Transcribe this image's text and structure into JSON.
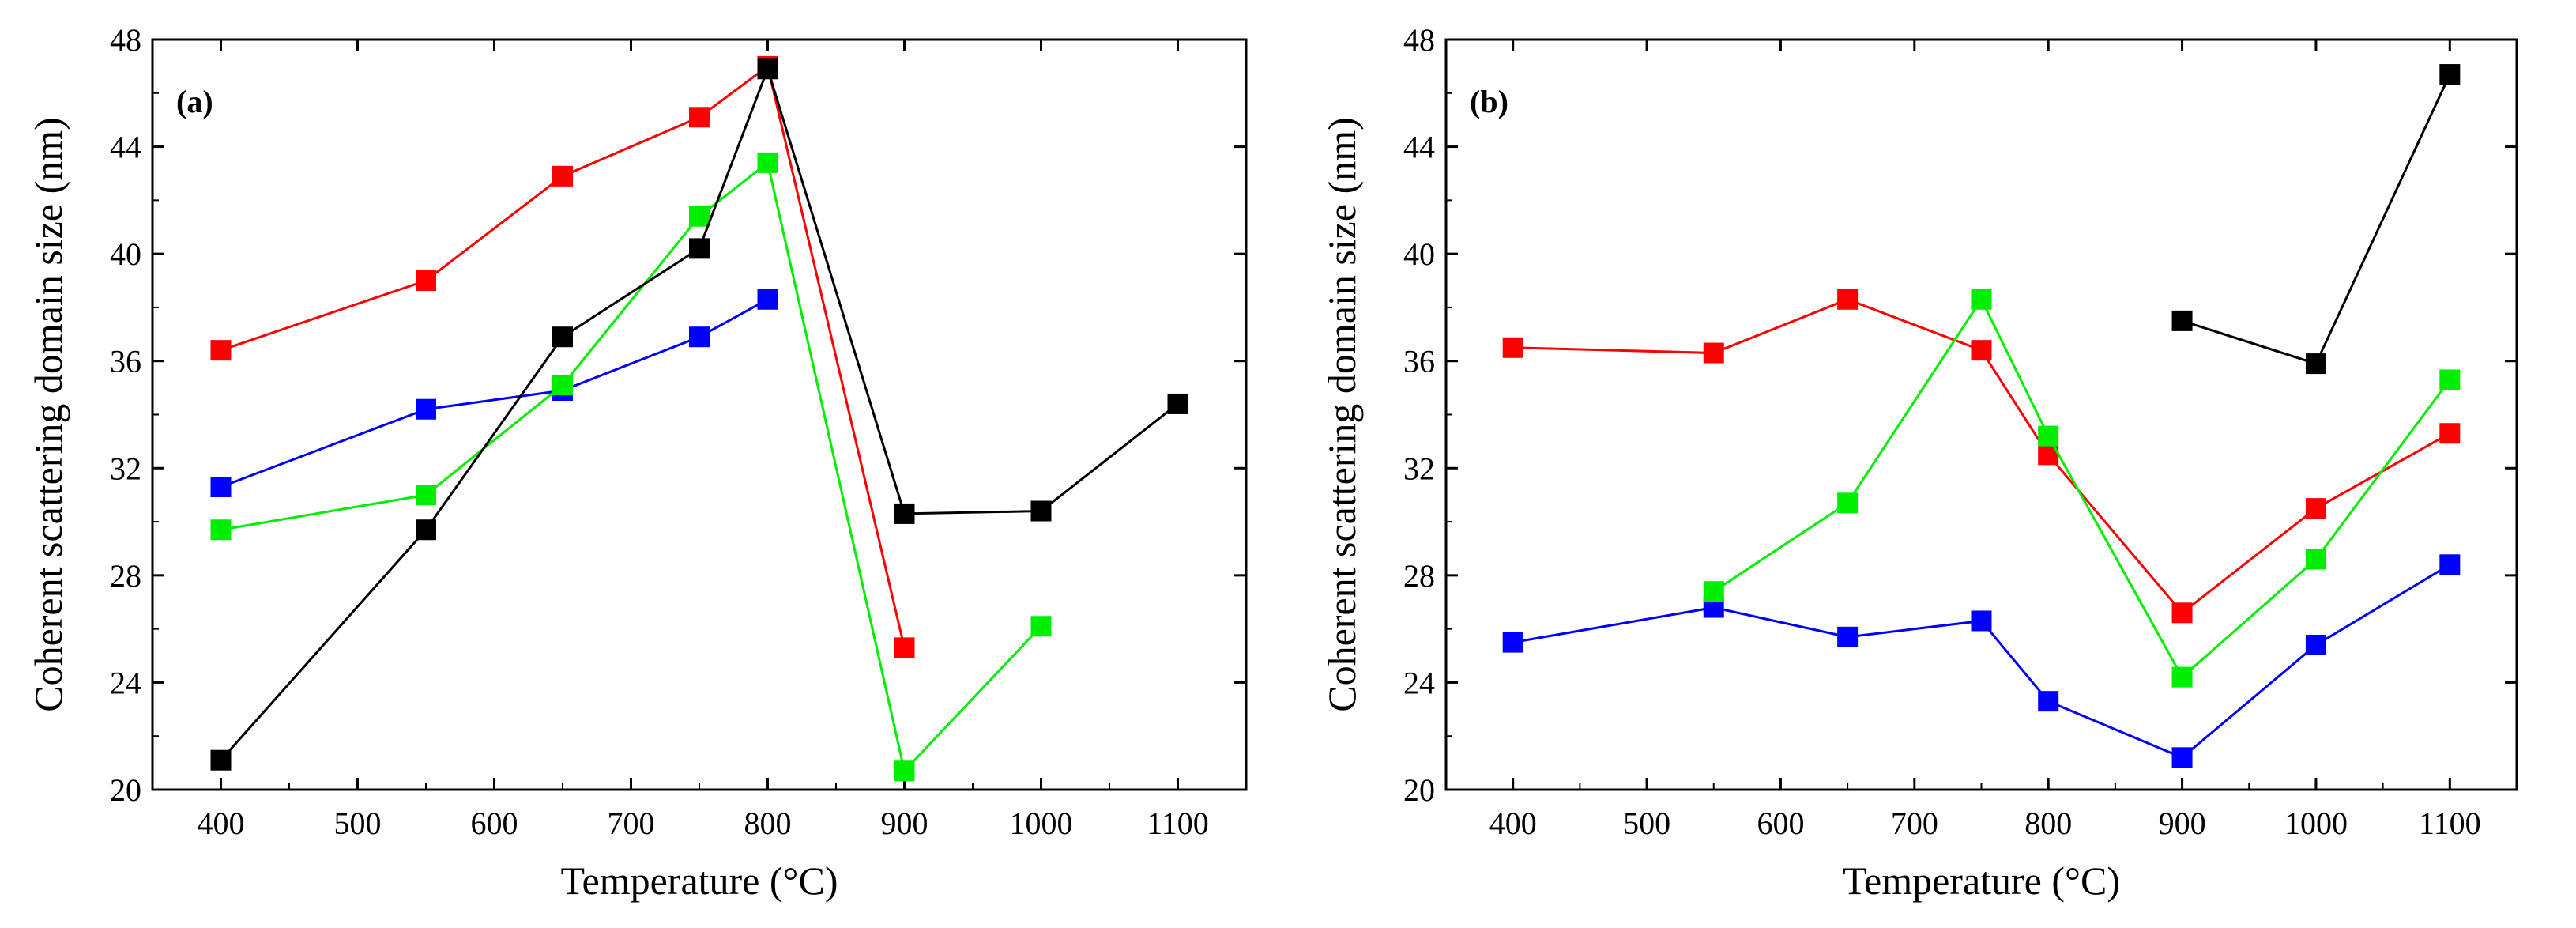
{
  "chart_data": [
    {
      "type": "line",
      "panel_label": "(a)",
      "xlabel": "Temperature (°C)",
      "ylabel": "Coherent scattering domain size (nm)",
      "xlim": [
        350,
        1150
      ],
      "ylim": [
        20,
        48
      ],
      "xticks": [
        400,
        500,
        600,
        700,
        800,
        900,
        1000,
        1100
      ],
      "yticks": [
        20,
        24,
        28,
        32,
        36,
        40,
        44,
        48
      ],
      "series": [
        {
          "name": "red",
          "color": "#ff0000",
          "x": [
            400,
            550,
            650,
            750,
            800,
            900
          ],
          "y": [
            36.4,
            39.0,
            42.9,
            45.1,
            47.0,
            25.3
          ]
        },
        {
          "name": "blue",
          "color": "#0000ff",
          "x": [
            400,
            550,
            650,
            750,
            800
          ],
          "y": [
            31.3,
            34.2,
            34.9,
            36.9,
            38.3
          ]
        },
        {
          "name": "green",
          "color": "#00ee00",
          "x": [
            400,
            550,
            650,
            750,
            800,
            900,
            1000
          ],
          "y": [
            29.7,
            31.0,
            35.1,
            41.4,
            43.4,
            20.7,
            26.1
          ]
        },
        {
          "name": "black",
          "color": "#000000",
          "segments": [
            {
              "x": [
                400,
                550,
                650,
                750,
                800,
                900,
                1000,
                1100
              ],
              "y": [
                21.1,
                29.7,
                36.9,
                40.2,
                46.9,
                30.3,
                30.4,
                34.4
              ]
            }
          ]
        }
      ]
    },
    {
      "type": "line",
      "panel_label": "(b)",
      "xlabel": "Temperature (°C)",
      "ylabel": "Coherent scattering domain size (nm)",
      "xlim": [
        350,
        1150
      ],
      "ylim": [
        20,
        48
      ],
      "xticks": [
        400,
        500,
        600,
        700,
        800,
        900,
        1000,
        1100
      ],
      "yticks": [
        20,
        24,
        28,
        32,
        36,
        40,
        44,
        48
      ],
      "series": [
        {
          "name": "red",
          "color": "#ff0000",
          "x": [
            400,
            550,
            650,
            750,
            800,
            900,
            1000,
            1100
          ],
          "y": [
            36.5,
            36.3,
            38.3,
            36.4,
            32.5,
            26.6,
            30.5,
            33.3
          ]
        },
        {
          "name": "blue",
          "color": "#0000ff",
          "x": [
            400,
            550,
            650,
            750,
            800,
            900,
            1000,
            1100
          ],
          "y": [
            25.5,
            26.8,
            25.7,
            26.3,
            23.3,
            21.2,
            25.4,
            28.4
          ]
        },
        {
          "name": "green",
          "color": "#00ee00",
          "x": [
            550,
            650,
            750,
            800,
            900,
            1000,
            1100
          ],
          "y": [
            27.4,
            30.7,
            38.3,
            33.2,
            24.2,
            28.6,
            35.3
          ]
        },
        {
          "name": "black",
          "color": "#000000",
          "x": [
            900,
            1000,
            1100
          ],
          "y": [
            37.5,
            35.9,
            46.7
          ]
        }
      ]
    }
  ]
}
